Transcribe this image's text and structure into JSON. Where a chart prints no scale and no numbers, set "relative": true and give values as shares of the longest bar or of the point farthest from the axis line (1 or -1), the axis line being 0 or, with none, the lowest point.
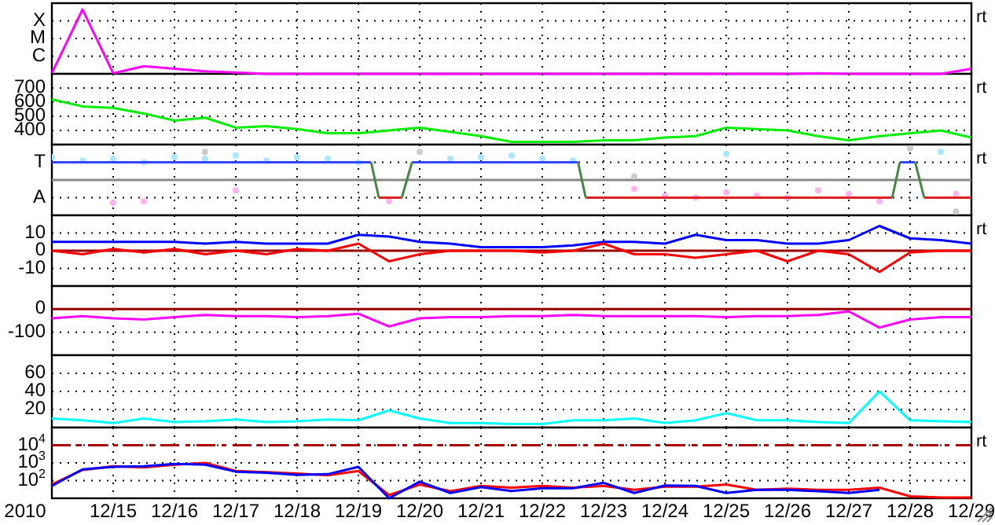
{
  "chart_data": [
    {
      "type": "line",
      "relative": true,
      "grid": "x",
      "tick_labels": false,
      "xlim": [
        "2010-12-14",
        "2010-12-29"
      ],
      "xticks": [
        "2010-12-15",
        "2010-12-16",
        "2010-12-17",
        "2010-12-18",
        "2010-12-19",
        "2010-12-20",
        "2010-12-21",
        "2010-12-22",
        "2010-12-23",
        "2010-12-24",
        "2010-12-25",
        "2010-12-26",
        "2010-12-27",
        "2010-12-28",
        "2010-12-29"
      ],
      "annotations": [
        "X",
        "M",
        "C",
        "rt"
      ],
      "x": [
        "2010-12-14T00:00",
        "2010-12-14T12:00",
        "2010-12-15T00:00",
        "2010-12-15T12:00",
        "2010-12-16T00:00",
        "2010-12-16T12:00",
        "2010-12-17T00:00",
        "2010-12-17T12:00",
        "2010-12-18T00:00",
        "2010-12-18T12:00",
        "2010-12-19T00:00",
        "2010-12-19T12:00",
        "2010-12-20T00:00",
        "2010-12-20T12:00",
        "2010-12-21T00:00",
        "2010-12-21T12:00",
        "2010-12-22T00:00",
        "2010-12-22T12:00",
        "2010-12-23T00:00",
        "2010-12-23T12:00",
        "2010-12-24T00:00",
        "2010-12-24T12:00",
        "2010-12-25T00:00",
        "2010-12-25T12:00",
        "2010-12-26T00:00",
        "2010-12-26T12:00",
        "2010-12-27T00:00",
        "2010-12-27T12:00",
        "2010-12-28T00:00",
        "2010-12-28T12:00",
        "2010-12-29T00:00"
      ],
      "series": [
        {
          "color": "#ff00ff",
          "values": [
            0.01,
            1,
            0.01,
            0.12,
            0.08,
            0.04,
            0.02,
            0,
            0,
            0,
            0,
            0,
            0,
            0,
            0,
            0,
            0,
            0,
            0,
            0,
            0,
            0,
            0,
            0,
            0,
            0.01,
            0,
            0,
            0,
            0,
            0.08
          ]
        }
      ]
    },
    {
      "type": "line",
      "grid": true,
      "tick_labels": "y",
      "xlim": [
        "2010-12-14",
        "2010-12-29"
      ],
      "xticks": [
        "2010-12-15",
        "2010-12-16",
        "2010-12-17",
        "2010-12-18",
        "2010-12-19",
        "2010-12-20",
        "2010-12-21",
        "2010-12-22",
        "2010-12-23",
        "2010-12-24",
        "2010-12-25",
        "2010-12-26",
        "2010-12-27",
        "2010-12-28",
        "2010-12-29"
      ],
      "ylim": [
        300,
        800
      ],
      "yticks": [
        400,
        500,
        600,
        700
      ],
      "annotations": [
        "rt"
      ],
      "x": [
        "2010-12-14T00:00",
        "2010-12-14T12:00",
        "2010-12-15T00:00",
        "2010-12-15T12:00",
        "2010-12-16T00:00",
        "2010-12-16T12:00",
        "2010-12-17T00:00",
        "2010-12-17T12:00",
        "2010-12-18T00:00",
        "2010-12-18T12:00",
        "2010-12-19T00:00",
        "2010-12-19T12:00",
        "2010-12-20T00:00",
        "2010-12-20T12:00",
        "2010-12-21T00:00",
        "2010-12-21T12:00",
        "2010-12-22T00:00",
        "2010-12-22T12:00",
        "2010-12-23T00:00",
        "2010-12-23T12:00",
        "2010-12-24T00:00",
        "2010-12-24T12:00",
        "2010-12-25T00:00",
        "2010-12-25T12:00",
        "2010-12-26T00:00",
        "2010-12-26T12:00",
        "2010-12-27T00:00",
        "2010-12-27T12:00",
        "2010-12-28T00:00",
        "2010-12-28T12:00",
        "2010-12-29T00:00"
      ],
      "series": [
        {
          "color": "#00ee00",
          "values": [
            620,
            570,
            560,
            520,
            470,
            490,
            420,
            430,
            410,
            380,
            380,
            400,
            420,
            390,
            360,
            320,
            320,
            320,
            330,
            330,
            350,
            360,
            420,
            410,
            400,
            360,
            330,
            360,
            380,
            400,
            350
          ]
        }
      ]
    },
    {
      "type": "line",
      "relative": true,
      "grid": "x",
      "tick_labels": false,
      "xlim": [
        "2010-12-14",
        "2010-12-29"
      ],
      "xticks": [
        "2010-12-15",
        "2010-12-16",
        "2010-12-17",
        "2010-12-18",
        "2010-12-19",
        "2010-12-20",
        "2010-12-21",
        "2010-12-22",
        "2010-12-23",
        "2010-12-24",
        "2010-12-25",
        "2010-12-26",
        "2010-12-27",
        "2010-12-28",
        "2010-12-29"
      ],
      "annotations": [
        "T",
        "A",
        "rt"
      ],
      "ref_lines": [
        {
          "axis": "y",
          "value": 0,
          "color": "#888888",
          "line_style": "solid"
        }
      ],
      "series": [
        {
          "type": "scatter",
          "marker": "circle",
          "color": "#aae6ff",
          "x": [
            "2010-12-14T00:00",
            "2010-12-14T12:00",
            "2010-12-15T00:00",
            "2010-12-15T12:00",
            "2010-12-16T00:00",
            "2010-12-16T12:00",
            "2010-12-17T00:00",
            "2010-12-17T12:00",
            "2010-12-18T00:00",
            "2010-12-18T12:00",
            "2010-12-19T00:00",
            "2010-12-20T12:00",
            "2010-12-21T00:00",
            "2010-12-21T12:00",
            "2010-12-22T00:00",
            "2010-12-22T12:00",
            "2010-12-25T00:00",
            "2010-12-28T12:00"
          ],
          "values": [
            0.72,
            0.61,
            0.67,
            0.56,
            0.72,
            0.67,
            0.78,
            0.61,
            0.72,
            0.67,
            0.56,
            0.67,
            0.72,
            0.78,
            0.67,
            0.61,
            0.83,
            0.89
          ]
        },
        {
          "type": "scatter",
          "marker": "circle",
          "color": "#ffb4f0",
          "x": [
            "2010-12-15T00:00",
            "2010-12-15T12:00",
            "2010-12-17T00:00",
            "2010-12-19T12:00",
            "2010-12-23T12:00",
            "2010-12-24T00:00",
            "2010-12-24T12:00",
            "2010-12-25T00:00",
            "2010-12-25T12:00",
            "2010-12-26T00:00",
            "2010-12-26T12:00",
            "2010-12-27T00:00",
            "2010-12-27T12:00",
            "2010-12-28T18:00"
          ],
          "values": [
            -0.72,
            -0.67,
            -0.33,
            -0.67,
            -0.28,
            -0.5,
            -0.56,
            -0.39,
            -0.5,
            -0.56,
            -0.33,
            -0.44,
            -0.67,
            -0.44
          ]
        },
        {
          "type": "scatter",
          "marker": "circle",
          "color": "#cccccc",
          "x": [
            "2010-12-16T12:00",
            "2010-12-20T00:00",
            "2010-12-23T12:00",
            "2010-12-28T00:00",
            "2010-12-28T18:00"
          ],
          "values": [
            0.89,
            0.89,
            0.11,
            1,
            -1
          ]
        },
        {
          "color": "#3344ff",
          "x": [
            "2010-12-14T00:00",
            "2010-12-19T05:00",
            "2010-12-19T13:00",
            "2010-12-19T21:00",
            "2010-12-22T14:00",
            "2010-12-25T00:00",
            "2010-12-27T20:00",
            "2010-12-28T02:00"
          ],
          "values": [
            0.56,
            0.56,
            null,
            0.56,
            0.56,
            null,
            0.56,
            0.56
          ]
        },
        {
          "color": "#dd2222",
          "x": [
            "2010-12-19T08:00",
            "2010-12-19T17:00",
            "2010-12-20T12:00",
            "2010-12-22T17:00",
            "2010-12-27T17:00",
            "2010-12-27T22:00",
            "2010-12-28T05:30",
            "2010-12-29T00:00"
          ],
          "values": [
            -0.56,
            -0.56,
            null,
            -0.56,
            -0.56,
            null,
            -0.56,
            -0.56
          ]
        },
        {
          "color": "#448844",
          "x": [
            "2010-12-19T05:00",
            "2010-12-19T08:00",
            "2010-12-19T12:00",
            "2010-12-19T17:00",
            "2010-12-19T21:00",
            "2010-12-20T00:00",
            "2010-12-22T14:00",
            "2010-12-22T17:00",
            "2010-12-25T00:00",
            "2010-12-27T17:00",
            "2010-12-27T20:00",
            "2010-12-28T00:00",
            "2010-12-28T02:00",
            "2010-12-28T05:30"
          ],
          "values": [
            0.56,
            -0.56,
            null,
            -0.56,
            0.56,
            null,
            0.56,
            -0.56,
            null,
            -0.56,
            0.56,
            null,
            0.56,
            -0.56
          ]
        }
      ]
    },
    {
      "type": "line",
      "grid": true,
      "tick_labels": "y",
      "xlim": [
        "2010-12-14",
        "2010-12-29"
      ],
      "xticks": [
        "2010-12-15",
        "2010-12-16",
        "2010-12-17",
        "2010-12-18",
        "2010-12-19",
        "2010-12-20",
        "2010-12-21",
        "2010-12-22",
        "2010-12-23",
        "2010-12-24",
        "2010-12-25",
        "2010-12-26",
        "2010-12-27",
        "2010-12-28",
        "2010-12-29"
      ],
      "ylim": [
        -20,
        20
      ],
      "yticks": [
        -10,
        0,
        10
      ],
      "annotations": [
        "rt"
      ],
      "ref_lines": [
        {
          "axis": "y",
          "value": 0,
          "color": "#990000",
          "line_style": "solid"
        }
      ],
      "x": [
        "2010-12-14T00:00",
        "2010-12-14T12:00",
        "2010-12-15T00:00",
        "2010-12-15T12:00",
        "2010-12-16T00:00",
        "2010-12-16T12:00",
        "2010-12-17T00:00",
        "2010-12-17T12:00",
        "2010-12-18T00:00",
        "2010-12-18T12:00",
        "2010-12-19T00:00",
        "2010-12-19T12:00",
        "2010-12-20T00:00",
        "2010-12-20T12:00",
        "2010-12-21T00:00",
        "2010-12-21T12:00",
        "2010-12-22T00:00",
        "2010-12-22T12:00",
        "2010-12-23T00:00",
        "2010-12-23T12:00",
        "2010-12-24T00:00",
        "2010-12-24T12:00",
        "2010-12-25T00:00",
        "2010-12-25T12:00",
        "2010-12-26T00:00",
        "2010-12-26T12:00",
        "2010-12-27T00:00",
        "2010-12-27T12:00",
        "2010-12-28T00:00",
        "2010-12-28T12:00",
        "2010-12-29T00:00"
      ],
      "series": [
        {
          "color": "#0000ff",
          "values": [
            5,
            5,
            5,
            5,
            5,
            4,
            5,
            4,
            4,
            4,
            9,
            8,
            5,
            4,
            2,
            2,
            2,
            3,
            5,
            5,
            4,
            9,
            6,
            6,
            4,
            4,
            6,
            14,
            7,
            6,
            4
          ]
        },
        {
          "color": "#ff0000",
          "values": [
            0,
            -2,
            1,
            -1,
            1,
            -2,
            0,
            -2,
            1,
            0,
            4,
            -6,
            -2,
            0,
            0,
            0,
            -1,
            0,
            4,
            -2,
            -2,
            -4,
            -2,
            0,
            -6,
            0,
            -2,
            -12,
            -1,
            0,
            0
          ]
        }
      ]
    },
    {
      "type": "line",
      "grid": true,
      "tick_labels": "y",
      "xlim": [
        "2010-12-14",
        "2010-12-29"
      ],
      "xticks": [
        "2010-12-15",
        "2010-12-16",
        "2010-12-17",
        "2010-12-18",
        "2010-12-19",
        "2010-12-20",
        "2010-12-21",
        "2010-12-22",
        "2010-12-23",
        "2010-12-24",
        "2010-12-25",
        "2010-12-26",
        "2010-12-27",
        "2010-12-28",
        "2010-12-29"
      ],
      "ylim": [
        -200,
        100
      ],
      "yticks": [
        -100,
        0
      ],
      "ref_lines": [
        {
          "axis": "y",
          "value": 0,
          "color": "#990000",
          "line_style": "solid"
        }
      ],
      "x": [
        "2010-12-14T00:00",
        "2010-12-14T12:00",
        "2010-12-15T00:00",
        "2010-12-15T12:00",
        "2010-12-16T00:00",
        "2010-12-16T12:00",
        "2010-12-17T00:00",
        "2010-12-17T12:00",
        "2010-12-18T00:00",
        "2010-12-18T12:00",
        "2010-12-19T00:00",
        "2010-12-19T12:00",
        "2010-12-20T00:00",
        "2010-12-20T12:00",
        "2010-12-21T00:00",
        "2010-12-21T12:00",
        "2010-12-22T00:00",
        "2010-12-22T12:00",
        "2010-12-23T00:00",
        "2010-12-23T12:00",
        "2010-12-24T00:00",
        "2010-12-24T12:00",
        "2010-12-25T00:00",
        "2010-12-25T12:00",
        "2010-12-26T00:00",
        "2010-12-26T12:00",
        "2010-12-27T00:00",
        "2010-12-27T12:00",
        "2010-12-28T00:00",
        "2010-12-28T12:00",
        "2010-12-29T00:00"
      ],
      "series": [
        {
          "color": "#ff00ff",
          "values": [
            -40,
            -30,
            -40,
            -45,
            -35,
            -25,
            -30,
            -30,
            -35,
            -30,
            -20,
            -75,
            -40,
            -35,
            -35,
            -30,
            -30,
            -25,
            -30,
            -30,
            -30,
            -30,
            -35,
            -30,
            -30,
            -25,
            -10,
            -80,
            -45,
            -35,
            -35
          ]
        }
      ]
    },
    {
      "type": "line",
      "grid": true,
      "tick_labels": "y",
      "xlim": [
        "2010-12-14",
        "2010-12-29"
      ],
      "xticks": [
        "2010-12-15",
        "2010-12-16",
        "2010-12-17",
        "2010-12-18",
        "2010-12-19",
        "2010-12-20",
        "2010-12-21",
        "2010-12-22",
        "2010-12-23",
        "2010-12-24",
        "2010-12-25",
        "2010-12-26",
        "2010-12-27",
        "2010-12-28",
        "2010-12-29"
      ],
      "ylim": [
        0,
        80
      ],
      "yticks": [
        20,
        40,
        60
      ],
      "x": [
        "2010-12-14T00:00",
        "2010-12-14T12:00",
        "2010-12-15T00:00",
        "2010-12-15T12:00",
        "2010-12-16T00:00",
        "2010-12-16T12:00",
        "2010-12-17T00:00",
        "2010-12-17T12:00",
        "2010-12-18T00:00",
        "2010-12-18T12:00",
        "2010-12-19T00:00",
        "2010-12-19T12:00",
        "2010-12-20T00:00",
        "2010-12-20T12:00",
        "2010-12-21T00:00",
        "2010-12-21T12:00",
        "2010-12-22T00:00",
        "2010-12-22T12:00",
        "2010-12-23T00:00",
        "2010-12-23T12:00",
        "2010-12-24T00:00",
        "2010-12-24T12:00",
        "2010-12-25T00:00",
        "2010-12-25T12:00",
        "2010-12-26T00:00",
        "2010-12-26T12:00",
        "2010-12-27T00:00",
        "2010-12-27T12:00",
        "2010-12-28T00:00",
        "2010-12-28T12:00",
        "2010-12-29T00:00"
      ],
      "series": [
        {
          "color": "#00ffff",
          "values": [
            10,
            8,
            5,
            10,
            6,
            7,
            9,
            6,
            7,
            9,
            8,
            19,
            10,
            5,
            5,
            4,
            4,
            8,
            8,
            10,
            5,
            8,
            16,
            8,
            8,
            6,
            5,
            40,
            8,
            7,
            6
          ]
        }
      ]
    },
    {
      "type": "line",
      "log": "y",
      "grid": true,
      "xlim": [
        "2010-12-14",
        "2010-12-29"
      ],
      "xlabel": "2010",
      "xticks": [
        {
          "value": "2010-12-15",
          "label": "12/15"
        },
        {
          "value": "2010-12-16",
          "label": "12/16"
        },
        {
          "value": "2010-12-17",
          "label": "12/17"
        },
        {
          "value": "2010-12-18",
          "label": "12/18"
        },
        {
          "value": "2010-12-19",
          "label": "12/19"
        },
        {
          "value": "2010-12-20",
          "label": "12/20"
        },
        {
          "value": "2010-12-21",
          "label": "12/21"
        },
        {
          "value": "2010-12-22",
          "label": "12/22"
        },
        {
          "value": "2010-12-23",
          "label": "12/23"
        },
        {
          "value": "2010-12-24",
          "label": "12/24"
        },
        {
          "value": "2010-12-25",
          "label": "12/25"
        },
        {
          "value": "2010-12-26",
          "label": "12/26"
        },
        {
          "value": "2010-12-27",
          "label": "12/27"
        },
        {
          "value": "2010-12-28",
          "label": "12/28"
        },
        {
          "value": "2010-12-29",
          "label": "12/29"
        }
      ],
      "ylim": [
        10,
        100000
      ],
      "yticks": [
        {
          "value": 100,
          "label": "10$^{2}$"
        },
        {
          "value": 1000,
          "label": "10$^{3}$"
        },
        {
          "value": 10000,
          "label": "10$^{4}$"
        }
      ],
      "annotations": [
        "rt"
      ],
      "ref_lines": [
        {
          "axis": "y",
          "value": 10000,
          "color": "#aa0000",
          "line_style": "dashed"
        }
      ],
      "x": [
        "2010-12-14T00:00",
        "2010-12-14T12:00",
        "2010-12-15T00:00",
        "2010-12-15T12:00",
        "2010-12-16T00:00",
        "2010-12-16T12:00",
        "2010-12-17T00:00",
        "2010-12-17T12:00",
        "2010-12-18T00:00",
        "2010-12-18T12:00",
        "2010-12-19T00:00",
        "2010-12-19T12:00",
        "2010-12-20T00:00",
        "2010-12-20T12:00",
        "2010-12-21T00:00",
        "2010-12-21T12:00",
        "2010-12-22T00:00",
        "2010-12-22T12:00",
        "2010-12-23T00:00",
        "2010-12-23T12:00",
        "2010-12-24T00:00",
        "2010-12-24T12:00",
        "2010-12-25T00:00",
        "2010-12-25T12:00",
        "2010-12-26T00:00",
        "2010-12-26T12:00",
        "2010-12-27T00:00",
        "2010-12-27T12:00",
        "2010-12-28T00:00",
        "2010-12-28T12:00",
        "2010-12-29T00:00"
      ],
      "series": [
        {
          "color": "#ff0000",
          "values": [
            60,
            400,
            650,
            550,
            800,
            1000,
            350,
            300,
            250,
            200,
            350,
            15,
            60,
            25,
            50,
            40,
            50,
            40,
            50,
            30,
            45,
            45,
            60,
            30,
            35,
            30,
            30,
            40,
            13,
            11,
            11
          ]
        },
        {
          "color": "#0000ff",
          "values": [
            50,
            430,
            600,
            650,
            870,
            800,
            320,
            280,
            210,
            230,
            600,
            10,
            87,
            20,
            43,
            26,
            37,
            37,
            75,
            20,
            53,
            50,
            20,
            30,
            30,
            25,
            20,
            30,
            null,
            null,
            null
          ]
        }
      ]
    }
  ]
}
